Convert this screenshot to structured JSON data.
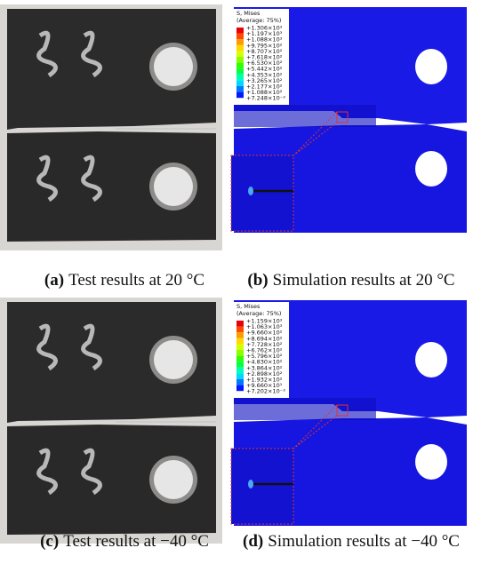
{
  "panels": [
    {
      "label": "(a)",
      "caption": "Test results at 20 °C"
    },
    {
      "label": "(b)",
      "caption": "Simulation results at 20 °C",
      "legend": {
        "title": "S, Mises",
        "subtitle": "(Average: 75%)",
        "values": [
          "+1.306×10³",
          "+1.197×10³",
          "+1.088×10³",
          "+9.795×10²",
          "+8.707×10²",
          "+7.618×10²",
          "+6.530×10²",
          "+5.442×10²",
          "+4.353×10²",
          "+3.265×10²",
          "+2.177×10²",
          "+1.088×10²",
          "+7.248×10⁻³"
        ]
      }
    },
    {
      "label": "(c)",
      "caption": "Test results at −40 °C"
    },
    {
      "label": "(d)",
      "caption": "Simulation results at −40 °C",
      "legend": {
        "title": "S, Mises",
        "subtitle": "(Average: 75%)",
        "values": [
          "+1.159×10³",
          "+1.063×10³",
          "+9.660×10²",
          "+8.694×10²",
          "+7.728×10²",
          "+6.762×10²",
          "+5.796×10²",
          "+4.830×10²",
          "+3.864×10²",
          "+2.898×10²",
          "+1.932×10²",
          "+9.660×10¹",
          "+7.202×10⁻³"
        ]
      }
    }
  ]
}
